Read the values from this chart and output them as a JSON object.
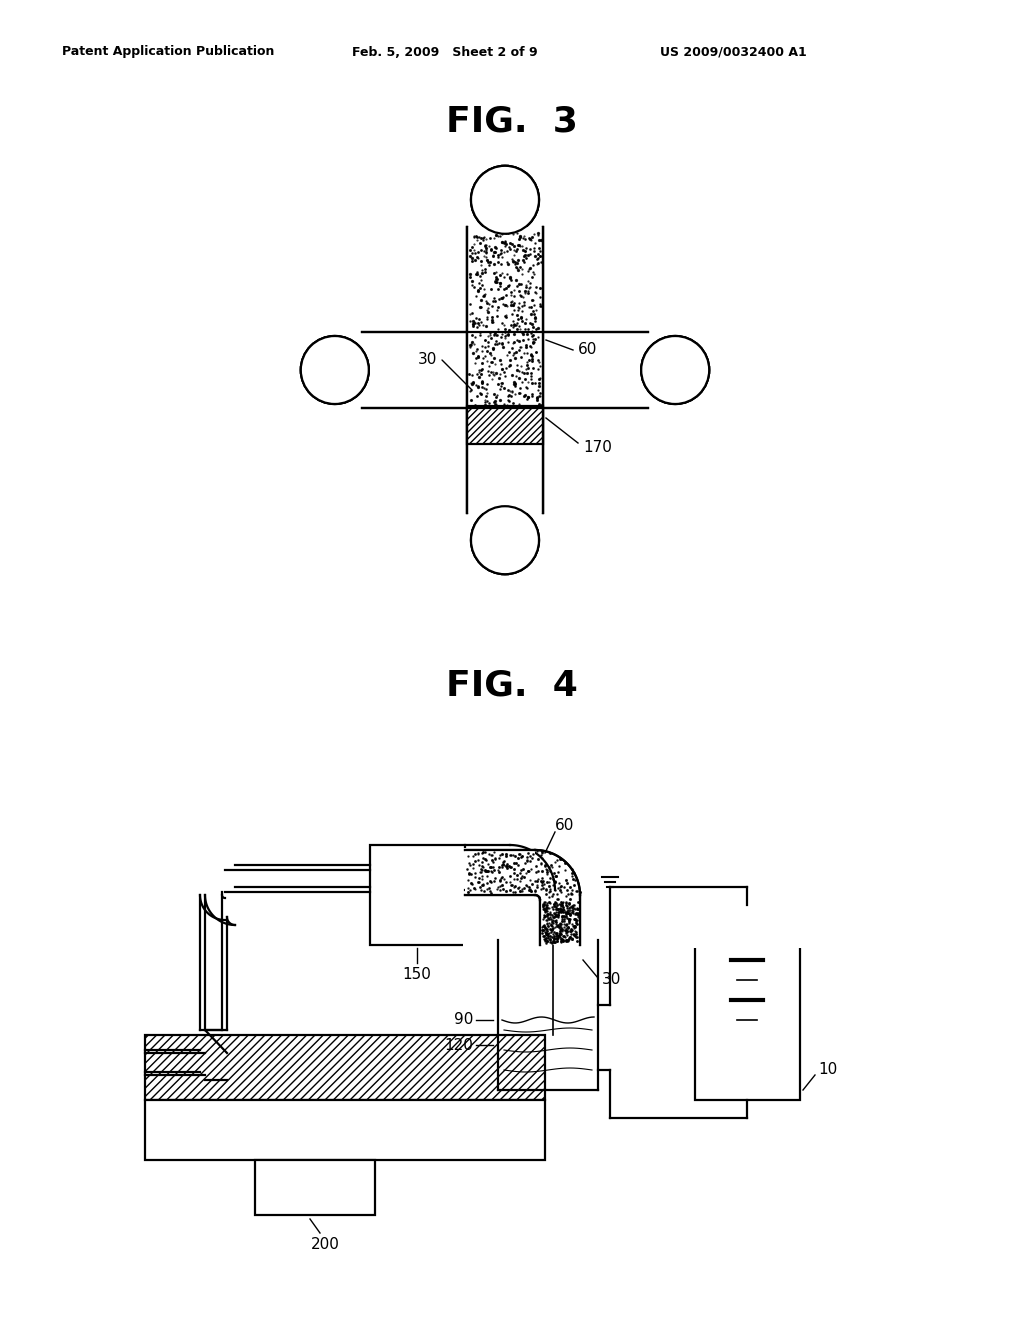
{
  "header_left": "Patent Application Publication",
  "header_mid": "Feb. 5, 2009   Sheet 2 of 9",
  "header_right": "US 2009/0032400 A1",
  "fig3_title": "FIG.  3",
  "fig4_title": "FIG.  4",
  "bg_color": "#ffffff",
  "line_color": "#000000",
  "label_30": "30",
  "label_60": "60",
  "label_170": "170",
  "label_150": "150",
  "label_90": "90",
  "label_120": "120",
  "label_10": "10",
  "label_200": "200"
}
